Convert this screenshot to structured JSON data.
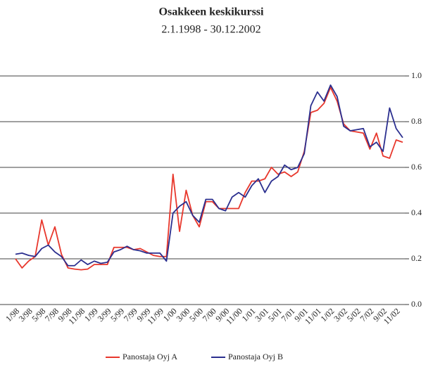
{
  "chart_data": {
    "type": "line",
    "title": "Osakkeen keskikurssi",
    "subtitle": "2.1.1998 - 30.12.2002",
    "categories": [
      "1/98",
      null,
      "3/98",
      null,
      "5/98",
      null,
      "7/98",
      null,
      "9/98",
      null,
      "11/98",
      null,
      "1/99",
      null,
      "3/99",
      null,
      "5/99",
      null,
      "7/99",
      null,
      "9/99",
      null,
      "11/99",
      null,
      "1/00",
      null,
      "3/00",
      null,
      "5/00",
      null,
      "7/00",
      null,
      "9/00",
      null,
      "11/00",
      null,
      "1/01",
      null,
      "3/01",
      null,
      "5/01",
      null,
      "7/01",
      null,
      "9/01",
      null,
      "11/01",
      null,
      "1/02",
      null,
      "3/02",
      null,
      "5/02",
      null,
      "7/02",
      null,
      "9/02",
      null,
      "11/02",
      null
    ],
    "series": [
      {
        "name": "Panostaja Oyj A",
        "color": "#e8372c",
        "values": [
          0.2,
          0.16,
          0.19,
          0.21,
          0.37,
          0.26,
          0.34,
          0.22,
          0.16,
          0.155,
          0.152,
          0.155,
          0.175,
          0.175,
          0.175,
          0.25,
          0.25,
          0.25,
          0.24,
          0.245,
          0.23,
          0.215,
          0.21,
          0.21,
          0.57,
          0.32,
          0.5,
          0.39,
          0.34,
          0.45,
          0.45,
          0.42,
          0.42,
          0.42,
          0.42,
          0.49,
          0.54,
          0.54,
          0.55,
          0.6,
          0.57,
          0.58,
          0.56,
          0.58,
          0.67,
          0.84,
          0.85,
          0.88,
          0.95,
          0.89,
          0.79,
          0.76,
          0.755,
          0.75,
          0.68,
          0.75,
          0.65,
          0.64,
          0.72,
          0.71
        ]
      },
      {
        "name": "Panostaja Oyj B",
        "color": "#2b2f8f",
        "values": [
          0.22,
          0.225,
          0.215,
          0.21,
          0.245,
          0.26,
          0.23,
          0.21,
          0.17,
          0.17,
          0.195,
          0.175,
          0.19,
          0.18,
          0.185,
          0.23,
          0.24,
          0.255,
          0.24,
          0.235,
          0.225,
          0.225,
          0.225,
          0.19,
          0.4,
          0.43,
          0.45,
          0.39,
          0.36,
          0.46,
          0.46,
          0.42,
          0.41,
          0.47,
          0.49,
          0.47,
          0.52,
          0.55,
          0.49,
          0.54,
          0.56,
          0.61,
          0.59,
          0.6,
          0.66,
          0.87,
          0.93,
          0.89,
          0.96,
          0.91,
          0.78,
          0.76,
          0.765,
          0.77,
          0.69,
          0.71,
          0.67,
          0.86,
          0.77,
          0.73
        ]
      }
    ],
    "ylim": [
      0,
      1
    ],
    "yticks": [
      {
        "value": 0,
        "label": "0.0"
      },
      0.2,
      0.4,
      0.6,
      0.8,
      {
        "value": 1,
        "label": "1.0"
      }
    ],
    "grid": true,
    "legend": "bottom"
  }
}
